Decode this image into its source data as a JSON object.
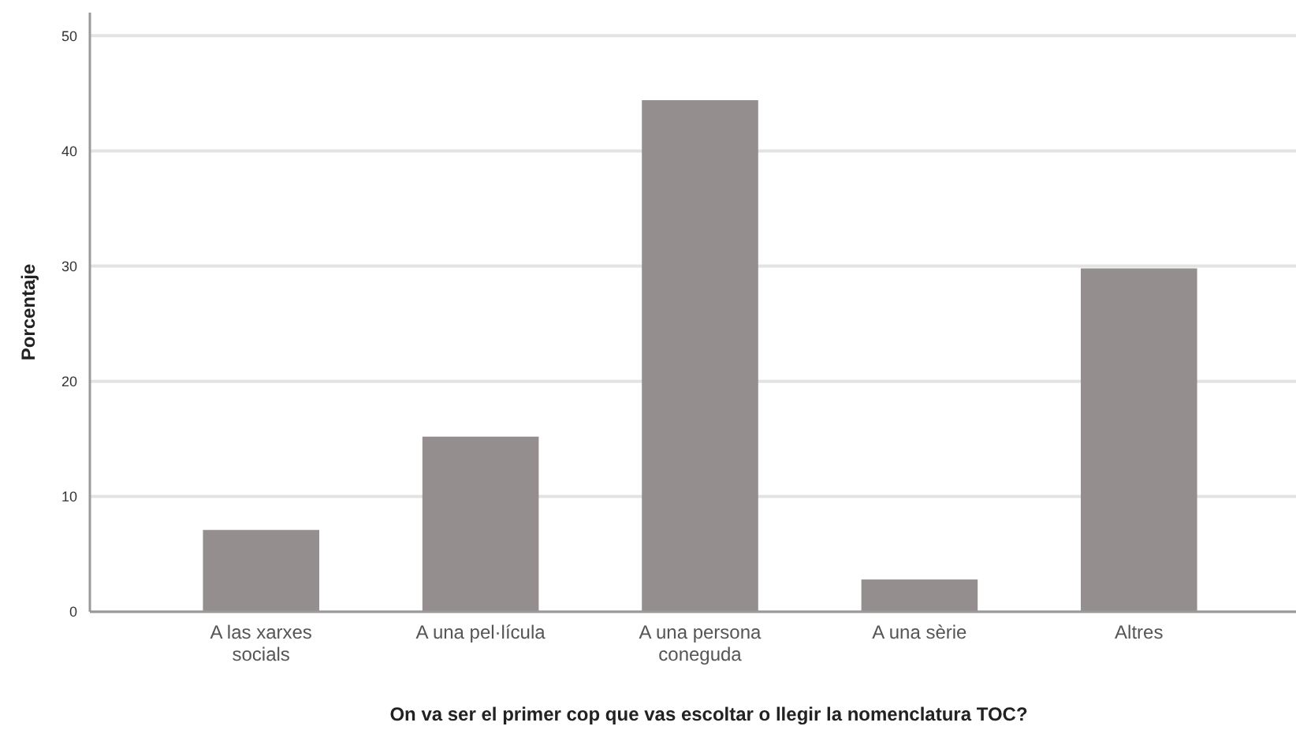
{
  "chart_data": {
    "type": "bar",
    "xlabel": "On va ser el primer cop que vas escoltar o llegir la nomenclatura TOC?",
    "ylabel": "Porcentaje",
    "categories": [
      "A las xarxes socials",
      "A una pel·lícula",
      "A una persona coneguda",
      "A una sèrie",
      "Altres"
    ],
    "values": [
      7.1,
      15.2,
      44.4,
      2.8,
      29.8
    ],
    "color": "#948f8e",
    "ylim": [
      0,
      52
    ],
    "yticks": [
      0,
      10,
      20,
      30,
      40,
      50
    ],
    "grid": "y"
  }
}
